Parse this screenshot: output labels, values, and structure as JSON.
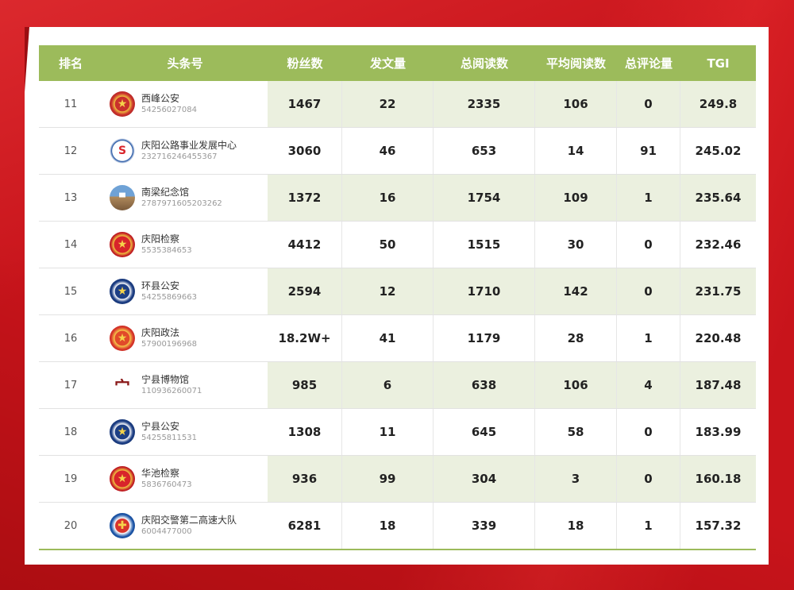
{
  "colors": {
    "background": "#c8141b",
    "header_bg": "#9cbb5b",
    "shaded_cell": "#ebf0df"
  },
  "table": {
    "headers": {
      "rank": "排名",
      "account": "头条号",
      "fans": "粉丝数",
      "posts": "发文量",
      "total_reads": "总阅读数",
      "avg_reads": "平均阅读数",
      "comments": "总评论量",
      "tgi": "TGI"
    },
    "rows": [
      {
        "rank": "11",
        "name": "西峰公安",
        "id": "54256027084",
        "logo_icon": "police-emblem-icon",
        "fans": "1467",
        "posts": "22",
        "total_reads": "2335",
        "avg_reads": "106",
        "comments": "0",
        "tgi": "249.8"
      },
      {
        "rank": "12",
        "name": "庆阳公路事业发展中心",
        "id": "232716246455367",
        "logo_icon": "highway-logo-icon",
        "fans": "3060",
        "posts": "46",
        "total_reads": "653",
        "avg_reads": "14",
        "comments": "91",
        "tgi": "245.02"
      },
      {
        "rank": "13",
        "name": "南梁纪念馆",
        "id": "2787971605203262",
        "logo_icon": "memorial-hall-icon",
        "fans": "1372",
        "posts": "16",
        "total_reads": "1754",
        "avg_reads": "109",
        "comments": "1",
        "tgi": "235.64"
      },
      {
        "rank": "14",
        "name": "庆阳检察",
        "id": "5535384653",
        "logo_icon": "procuratorate-emblem-icon",
        "fans": "4412",
        "posts": "50",
        "total_reads": "1515",
        "avg_reads": "30",
        "comments": "0",
        "tgi": "232.46"
      },
      {
        "rank": "15",
        "name": "环县公安",
        "id": "54255869663",
        "logo_icon": "police-badge-icon",
        "fans": "2594",
        "posts": "12",
        "total_reads": "1710",
        "avg_reads": "142",
        "comments": "0",
        "tgi": "231.75"
      },
      {
        "rank": "16",
        "name": "庆阳政法",
        "id": "57900196968",
        "logo_icon": "politics-law-emblem-icon",
        "fans": "18.2W+",
        "posts": "41",
        "total_reads": "1179",
        "avg_reads": "28",
        "comments": "1",
        "tgi": "220.48"
      },
      {
        "rank": "17",
        "name": "宁县博物馆",
        "id": "110936260071",
        "logo_icon": "museum-logo-icon",
        "fans": "985",
        "posts": "6",
        "total_reads": "638",
        "avg_reads": "106",
        "comments": "4",
        "tgi": "187.48"
      },
      {
        "rank": "18",
        "name": "宁县公安",
        "id": "54255811531",
        "logo_icon": "police-badge-icon",
        "fans": "1308",
        "posts": "11",
        "total_reads": "645",
        "avg_reads": "58",
        "comments": "0",
        "tgi": "183.99"
      },
      {
        "rank": "19",
        "name": "华池检察",
        "id": "5836760473",
        "logo_icon": "procuratorate-emblem-icon",
        "fans": "936",
        "posts": "99",
        "total_reads": "304",
        "avg_reads": "3",
        "comments": "0",
        "tgi": "160.18"
      },
      {
        "rank": "20",
        "name": "庆阳交警第二高速大队",
        "id": "6004477000",
        "logo_icon": "traffic-police-badge-icon",
        "fans": "6281",
        "posts": "18",
        "total_reads": "339",
        "avg_reads": "18",
        "comments": "1",
        "tgi": "157.32"
      }
    ]
  }
}
